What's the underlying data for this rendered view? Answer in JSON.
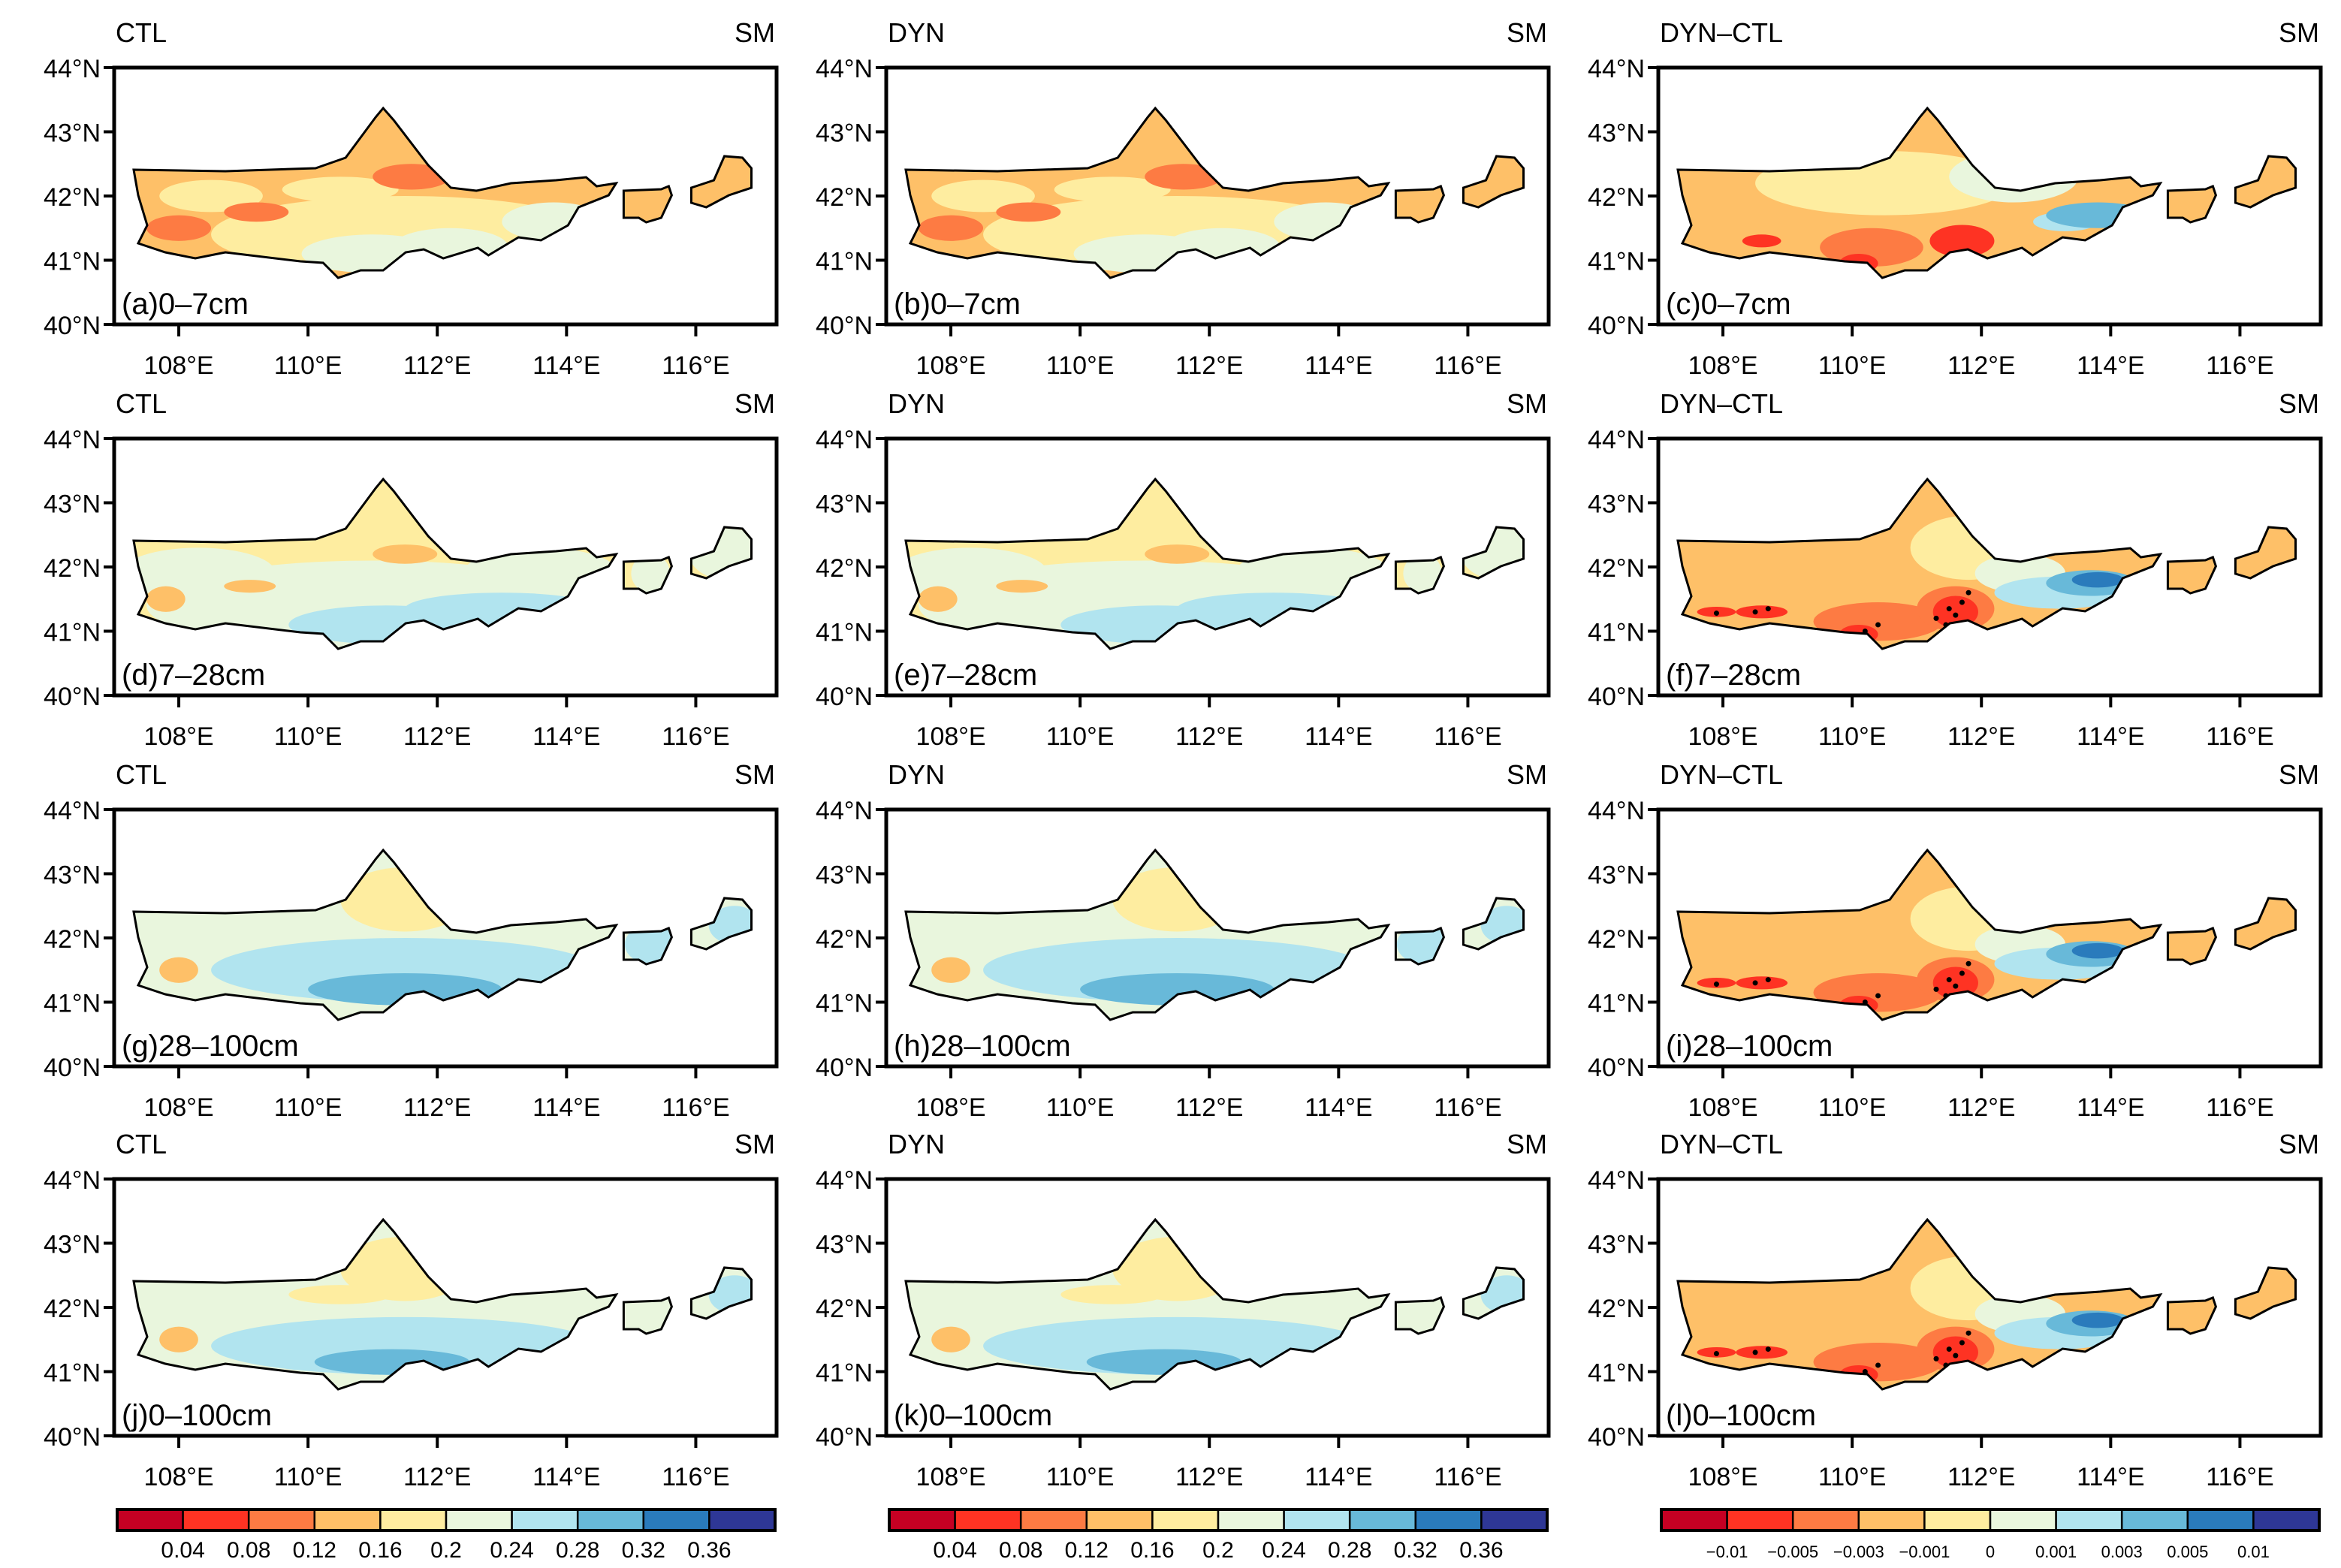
{
  "axes": {
    "lon_range": [
      107,
      117.25
    ],
    "lat_range": [
      40,
      44
    ],
    "lon_ticks": [
      108,
      110,
      112,
      114,
      116
    ],
    "lon_tick_labels": [
      "108°E",
      "110°E",
      "112°E",
      "114°E",
      "116°E"
    ],
    "lat_ticks": [
      40,
      41,
      42,
      43,
      44
    ],
    "lat_tick_labels": [
      "40°N",
      "41°N",
      "42°N",
      "43°N",
      "44°N"
    ]
  },
  "colorbars": [
    {
      "labels": [
        "0.04",
        "0.08",
        "0.12",
        "0.16",
        "0.2",
        "0.24",
        "0.28",
        "0.32",
        "0.36"
      ],
      "colors": [
        "#C50023",
        "#FE3323",
        "#FD7B43",
        "#FEC068",
        "#FEEDA0",
        "#E9F6DD",
        "#B1E4EF",
        "#68B9D9",
        "#2A7BBC",
        "#2E3796"
      ]
    },
    {
      "labels": [
        "0.04",
        "0.08",
        "0.12",
        "0.16",
        "0.2",
        "0.24",
        "0.28",
        "0.32",
        "0.36"
      ],
      "colors": [
        "#C50023",
        "#FE3323",
        "#FD7B43",
        "#FEC068",
        "#FEEDA0",
        "#E9F6DD",
        "#B1E4EF",
        "#68B9D9",
        "#2A7BBC",
        "#2E3796"
      ]
    },
    {
      "labels": [
        "−0.01",
        "−0.005",
        "−0.003",
        "−0.001",
        "0",
        "0.001",
        "0.003",
        "0.005",
        "0.01"
      ],
      "colors": [
        "#C50023",
        "#FE3323",
        "#FD7B43",
        "#FEC068",
        "#FEEDA0",
        "#E9F6DD",
        "#B1E4EF",
        "#68B9D9",
        "#2A7BBC",
        "#2E3796"
      ]
    }
  ],
  "chart_data": [
    {
      "type": "heatmap",
      "left_title": "CTL",
      "right_title": "SM",
      "label": "(a)0–7cm",
      "field": "l1",
      "stipple": false
    },
    {
      "type": "heatmap",
      "left_title": "DYN",
      "right_title": "SM",
      "label": "(b)0–7cm",
      "field": "l1",
      "stipple": false
    },
    {
      "type": "heatmap",
      "left_title": "DYN–CTL",
      "right_title": "SM",
      "label": "(c)0–7cm",
      "field": "d1",
      "stipple": false
    },
    {
      "type": "heatmap",
      "left_title": "CTL",
      "right_title": "SM",
      "label": "(d)7–28cm",
      "field": "l2",
      "stipple": false
    },
    {
      "type": "heatmap",
      "left_title": "DYN",
      "right_title": "SM",
      "label": "(e)7–28cm",
      "field": "l2",
      "stipple": false
    },
    {
      "type": "heatmap",
      "left_title": "DYN–CTL",
      "right_title": "SM",
      "label": "(f)7–28cm",
      "field": "d2",
      "stipple": true
    },
    {
      "type": "heatmap",
      "left_title": "CTL",
      "right_title": "SM",
      "label": "(g)28–100cm",
      "field": "l3",
      "stipple": false
    },
    {
      "type": "heatmap",
      "left_title": "DYN",
      "right_title": "SM",
      "label": "(h)28–100cm",
      "field": "l3",
      "stipple": false
    },
    {
      "type": "heatmap",
      "left_title": "DYN–CTL",
      "right_title": "SM",
      "label": "(i)28–100cm",
      "field": "d2",
      "stipple": true
    },
    {
      "type": "heatmap",
      "left_title": "CTL",
      "right_title": "SM",
      "label": "(j)0–100cm",
      "field": "l4",
      "stipple": false
    },
    {
      "type": "heatmap",
      "left_title": "DYN",
      "right_title": "SM",
      "label": "(k)0–100cm",
      "field": "l4",
      "stipple": false
    },
    {
      "type": "heatmap",
      "left_title": "DYN–CTL",
      "right_title": "SM",
      "label": "(l)0–100cm",
      "field": "d2",
      "stipple": true
    }
  ],
  "fields": {
    "l1": {
      "base": 3,
      "zones": [
        [
          111.5,
          41.4,
          3,
          0.6,
          4
        ],
        [
          108.5,
          42.0,
          0.8,
          0.25,
          4
        ],
        [
          110.5,
          42.1,
          0.9,
          0.2,
          4
        ],
        [
          111,
          41.1,
          1.1,
          0.3,
          5
        ],
        [
          112.2,
          41.2,
          0.9,
          0.3,
          5
        ],
        [
          113.8,
          41.6,
          0.8,
          0.3,
          5
        ],
        [
          108,
          41.5,
          0.5,
          0.2,
          2
        ],
        [
          109.2,
          41.75,
          0.5,
          0.15,
          2
        ],
        [
          111.6,
          42.3,
          0.6,
          0.2,
          2
        ],
        [
          116.7,
          42.2,
          0.4,
          0.3,
          3
        ]
      ]
    },
    "l2": {
      "base": 4,
      "zones": [
        [
          111,
          41.4,
          3.5,
          0.7,
          5
        ],
        [
          108.3,
          41.9,
          1.2,
          0.4,
          5
        ],
        [
          113.6,
          41.9,
          1.2,
          0.4,
          5
        ],
        [
          111.2,
          41.1,
          1.5,
          0.3,
          6
        ],
        [
          113,
          41.35,
          1.5,
          0.25,
          6
        ],
        [
          111.5,
          42.2,
          0.5,
          0.15,
          3
        ],
        [
          107.8,
          41.5,
          0.3,
          0.2,
          3
        ],
        [
          109.1,
          41.7,
          0.4,
          0.1,
          3
        ],
        [
          116.5,
          42.2,
          0.6,
          0.4,
          5
        ],
        [
          115.3,
          41.9,
          0.3,
          0.3,
          5
        ]
      ]
    },
    "l3": {
      "base": 5,
      "zones": [
        [
          111.5,
          41.5,
          3,
          0.5,
          6
        ],
        [
          111.5,
          41.2,
          1.5,
          0.25,
          7
        ],
        [
          111.5,
          42.6,
          1,
          0.5,
          4
        ],
        [
          108,
          41.5,
          0.3,
          0.2,
          3
        ],
        [
          115.3,
          41.9,
          0.4,
          0.3,
          6
        ],
        [
          116.6,
          42.2,
          0.4,
          0.3,
          6
        ]
      ]
    },
    "l4": {
      "base": 5,
      "zones": [
        [
          111.5,
          41.4,
          3,
          0.45,
          6
        ],
        [
          111.3,
          41.15,
          1.2,
          0.2,
          7
        ],
        [
          111.5,
          42.6,
          1,
          0.5,
          4
        ],
        [
          108,
          41.5,
          0.3,
          0.2,
          3
        ],
        [
          110.5,
          42.2,
          0.8,
          0.15,
          4
        ],
        [
          116.6,
          42.2,
          0.4,
          0.3,
          6
        ]
      ]
    },
    "d1": {
      "base": 3,
      "zones": [
        [
          110.5,
          42.2,
          2,
          0.5,
          4
        ],
        [
          112.5,
          42.3,
          1,
          0.4,
          5
        ],
        [
          113.3,
          41.6,
          0.5,
          0.15,
          6
        ],
        [
          113.8,
          41.7,
          0.8,
          0.2,
          7
        ],
        [
          110.3,
          41.2,
          0.8,
          0.3,
          2
        ],
        [
          111.7,
          41.3,
          0.5,
          0.25,
          1
        ],
        [
          110.1,
          40.95,
          0.3,
          0.15,
          1
        ],
        [
          108.6,
          41.3,
          0.3,
          0.1,
          1
        ],
        [
          116.7,
          42.2,
          0.5,
          0.4,
          3
        ]
      ]
    },
    "d2": {
      "base": 3,
      "zones": [
        [
          111.8,
          42.3,
          0.9,
          0.5,
          4
        ],
        [
          112.6,
          41.9,
          0.7,
          0.3,
          5
        ],
        [
          113.2,
          41.6,
          1,
          0.25,
          6
        ],
        [
          113.7,
          41.75,
          0.7,
          0.2,
          7
        ],
        [
          113.8,
          41.8,
          0.4,
          0.12,
          8
        ],
        [
          110.4,
          41.15,
          1,
          0.3,
          2
        ],
        [
          111.6,
          41.35,
          0.6,
          0.35,
          2
        ],
        [
          111.6,
          41.3,
          0.35,
          0.25,
          1
        ],
        [
          110.1,
          40.95,
          0.3,
          0.15,
          1
        ],
        [
          108.6,
          41.3,
          0.4,
          0.1,
          1
        ],
        [
          107.9,
          41.3,
          0.3,
          0.08,
          1
        ],
        [
          116.7,
          42.2,
          0.5,
          0.4,
          3
        ]
      ]
    }
  }
}
